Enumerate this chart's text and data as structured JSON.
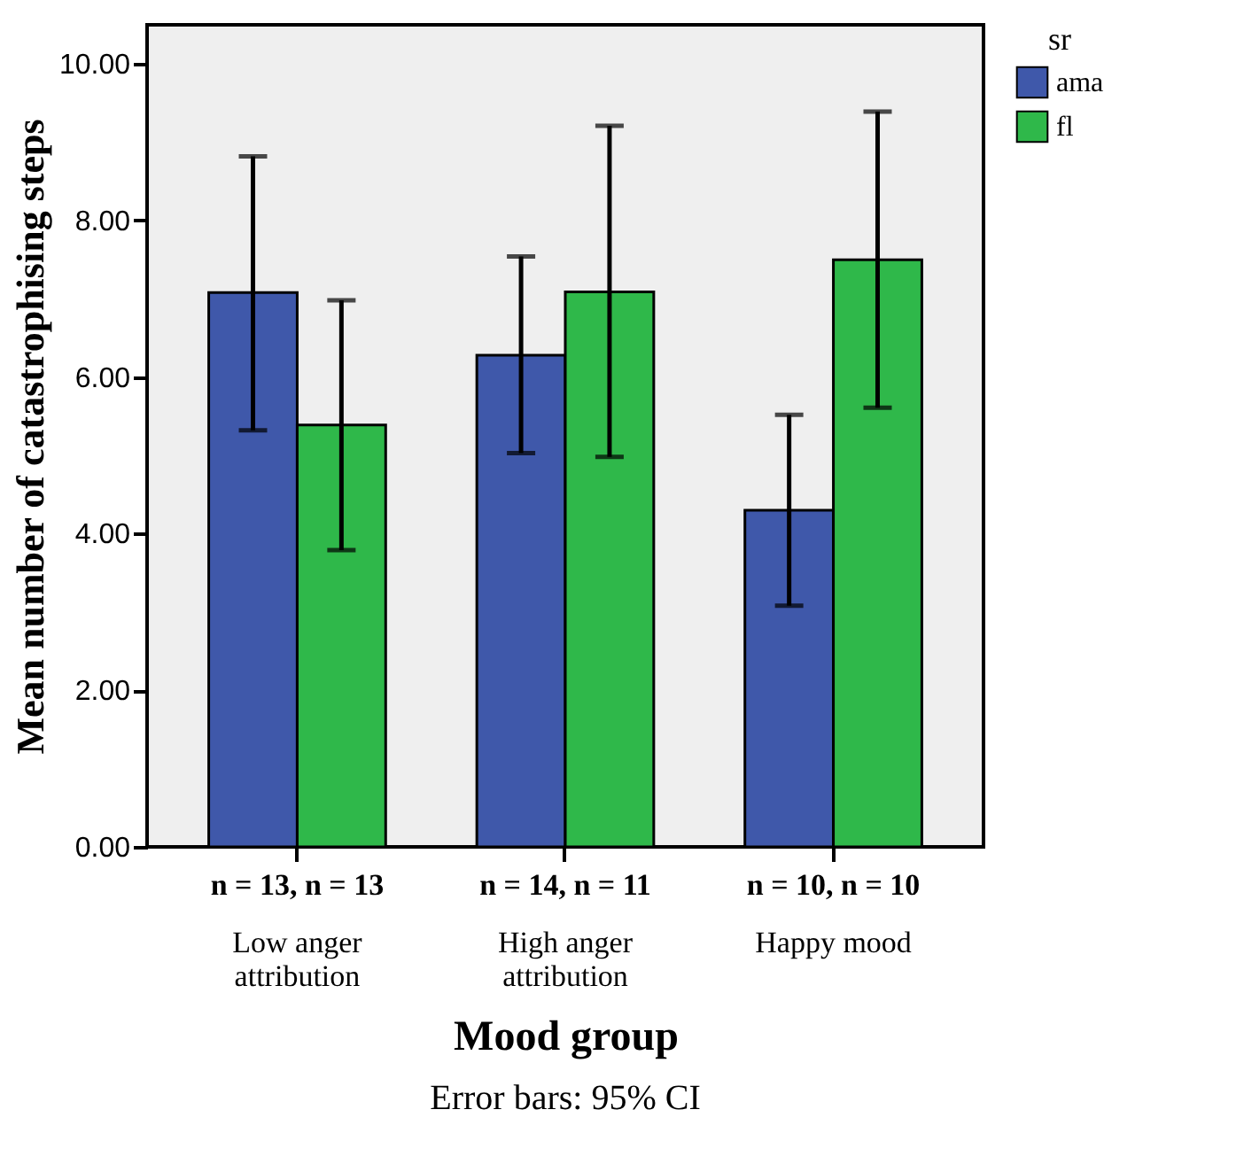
{
  "chart_data": {
    "type": "bar",
    "ylabel": "Mean number of catastrophising steps",
    "xlabel": "Mood group",
    "legend_title": "sr",
    "categories": [
      "Low anger attribution",
      "High anger attribution",
      "Happy mood"
    ],
    "series": [
      {
        "name": "ama",
        "color": "#3f58aa",
        "values": [
          7.08,
          6.28,
          4.3
        ],
        "errors": [
          [
            5.32,
            8.82
          ],
          [
            5.03,
            7.54
          ],
          [
            3.08,
            5.52
          ]
        ]
      },
      {
        "name": "fl",
        "color": "#2fb84a",
        "values": [
          5.39,
          7.09,
          7.5
        ],
        "errors": [
          [
            3.79,
            6.98
          ],
          [
            4.98,
            9.21
          ],
          [
            5.61,
            9.39
          ]
        ]
      }
    ],
    "ylim": [
      0,
      10.5
    ],
    "yticks": [
      {
        "value": 0,
        "label": "0.00"
      },
      {
        "value": 2,
        "label": "2.00"
      },
      {
        "value": 4,
        "label": "4.00"
      },
      {
        "value": 6,
        "label": "6.00"
      },
      {
        "value": 8,
        "label": "8.00"
      },
      {
        "value": 10,
        "label": "10.00"
      }
    ],
    "grid": false,
    "legend": "top right",
    "annotations": [
      "n = 13, n = 13",
      "n = 14, n = 11",
      "n = 10, n = 10",
      "Error bars: 95% CI"
    ]
  }
}
